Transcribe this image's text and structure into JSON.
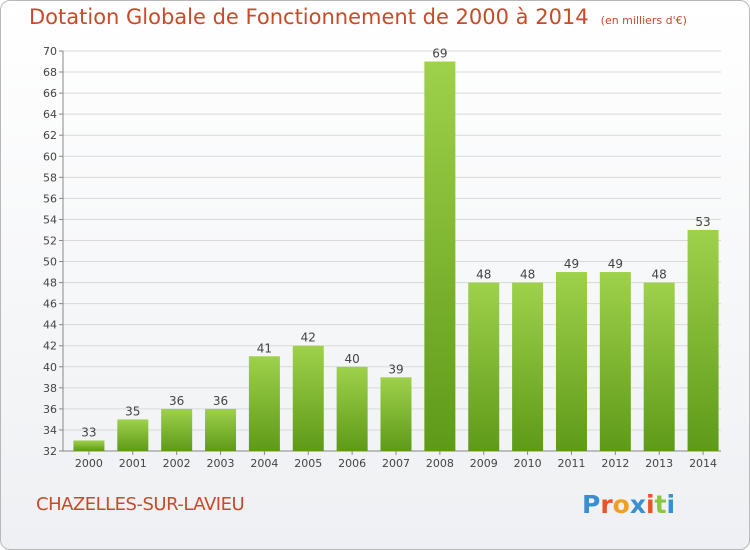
{
  "title": "Dotation Globale de Fonctionnement de 2000 à 2014",
  "subtitle": "(en milliers d'€)",
  "commune": "CHAZELLES-SUR-LAVIEU",
  "brand": {
    "text": "Proxiti",
    "letters": [
      {
        "char": "P",
        "color": "#3a8fd0"
      },
      {
        "char": "r",
        "color": "#e8542a"
      },
      {
        "char": "o",
        "color": "#f0a020"
      },
      {
        "char": "x",
        "color": "#3a8fd0"
      },
      {
        "char": "i",
        "color": "#e8542a"
      },
      {
        "char": "t",
        "color": "#8cc63f"
      },
      {
        "char": "i",
        "color": "#3a8fd0"
      }
    ]
  },
  "colors": {
    "text_accent": "#c84a28",
    "bar_light": "#9fd14b",
    "bar_dark": "#5e9a18",
    "grid": "#d9d9d9"
  },
  "chart_data": {
    "type": "bar",
    "title": "Dotation Globale de Fonctionnement de 2000 à 2014",
    "subtitle": "(en milliers d'€)",
    "categories": [
      "2000",
      "2001",
      "2002",
      "2003",
      "2004",
      "2005",
      "2006",
      "2007",
      "2008",
      "2009",
      "2010",
      "2011",
      "2012",
      "2013",
      "2014"
    ],
    "values": [
      33,
      35,
      36,
      36,
      41,
      42,
      40,
      39,
      69,
      48,
      48,
      49,
      49,
      48,
      53
    ],
    "ylim": [
      32,
      70
    ],
    "ytick_step": 2,
    "grid": true,
    "data_labels": true
  }
}
